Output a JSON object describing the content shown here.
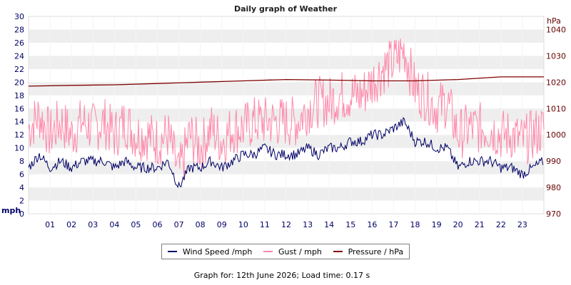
{
  "chart_data": {
    "type": "line",
    "title": "Daily graph of Weather",
    "left_axis_label": "mph",
    "right_axis_label": "hPa",
    "ylim": [
      0,
      30
    ],
    "y_ticks": [
      "0",
      "2",
      "4",
      "6",
      "8",
      "10",
      "12",
      "14",
      "16",
      "18",
      "20",
      "22",
      "24",
      "26",
      "28",
      "30"
    ],
    "y2lim": [
      970,
      1045
    ],
    "y2_ticks": [
      "970",
      "980",
      "990",
      "1000",
      "1010",
      "1020",
      "1030",
      "1040"
    ],
    "xlim": [
      0,
      24
    ],
    "x_ticks": [
      "01",
      "02",
      "03",
      "04",
      "05",
      "06",
      "07",
      "08",
      "09",
      "10",
      "11",
      "12",
      "13",
      "14",
      "15",
      "16",
      "17",
      "18",
      "19",
      "20",
      "21",
      "22",
      "23"
    ],
    "grid": "horizontal banded",
    "legend": "bottom-center",
    "series": [
      {
        "name": "Wind Speed /mph",
        "axis": "left",
        "color": "#000066",
        "x": [
          0,
          0.5,
          1,
          1.5,
          2,
          2.5,
          3,
          3.5,
          4,
          4.5,
          5,
          5.5,
          6,
          6.5,
          7,
          7.5,
          8,
          8.5,
          9,
          9.5,
          10,
          10.5,
          11,
          11.5,
          12,
          12.5,
          13,
          13.5,
          14,
          14.5,
          15,
          15.5,
          16,
          16.5,
          17,
          17.5,
          18,
          18.5,
          19,
          19.5,
          20,
          20.5,
          21,
          21.5,
          22,
          22.5,
          23,
          23.5,
          24
        ],
        "values": [
          7,
          9,
          7,
          8,
          7,
          8,
          8,
          8,
          7,
          8,
          7,
          7,
          7,
          8,
          4,
          7,
          7,
          8,
          7,
          8,
          9,
          9,
          10,
          9,
          9,
          9,
          10,
          9,
          10,
          10,
          11,
          11,
          12,
          12,
          13,
          14,
          11,
          11,
          10,
          10,
          7,
          8,
          8,
          8,
          7,
          7,
          6,
          7,
          8
        ]
      },
      {
        "name": "Gust / mph",
        "axis": "left",
        "color": "#ff88aa",
        "x": [
          0,
          0.5,
          1,
          1.5,
          2,
          2.5,
          3,
          3.5,
          4,
          4.5,
          5,
          5.5,
          6,
          6.5,
          7,
          7.5,
          8,
          8.5,
          9,
          9.5,
          10,
          10.5,
          11,
          11.5,
          12,
          12.5,
          13,
          13.5,
          14,
          14.5,
          15,
          15.5,
          16,
          16.5,
          17,
          17.5,
          18,
          18.5,
          19,
          19.5,
          20,
          20.5,
          21,
          21.5,
          22,
          22.5,
          23,
          23.5,
          24
        ],
        "values": [
          13,
          15,
          12,
          14,
          12,
          14,
          13,
          14,
          12,
          14,
          12,
          12,
          11,
          12,
          6,
          12,
          10,
          13,
          11,
          13,
          13,
          14,
          14,
          14,
          14,
          14,
          16,
          17,
          17,
          18,
          18,
          18,
          20,
          22,
          23,
          25,
          19,
          18,
          16,
          17,
          12,
          13,
          13,
          13,
          12,
          12,
          11,
          12,
          13
        ]
      },
      {
        "name": "Pressure / hPa",
        "axis": "right",
        "color": "#800000",
        "x": [
          0,
          2,
          4,
          6,
          8,
          10,
          12,
          14,
          16,
          18,
          20,
          22,
          24
        ],
        "values": [
          1018.5,
          1018.8,
          1019,
          1019.5,
          1020,
          1020.5,
          1021,
          1020.8,
          1020.5,
          1020.5,
          1021,
          1022,
          1022
        ]
      }
    ]
  },
  "footer": "Graph for: 12th June 2026; Load time: 0.17 s"
}
